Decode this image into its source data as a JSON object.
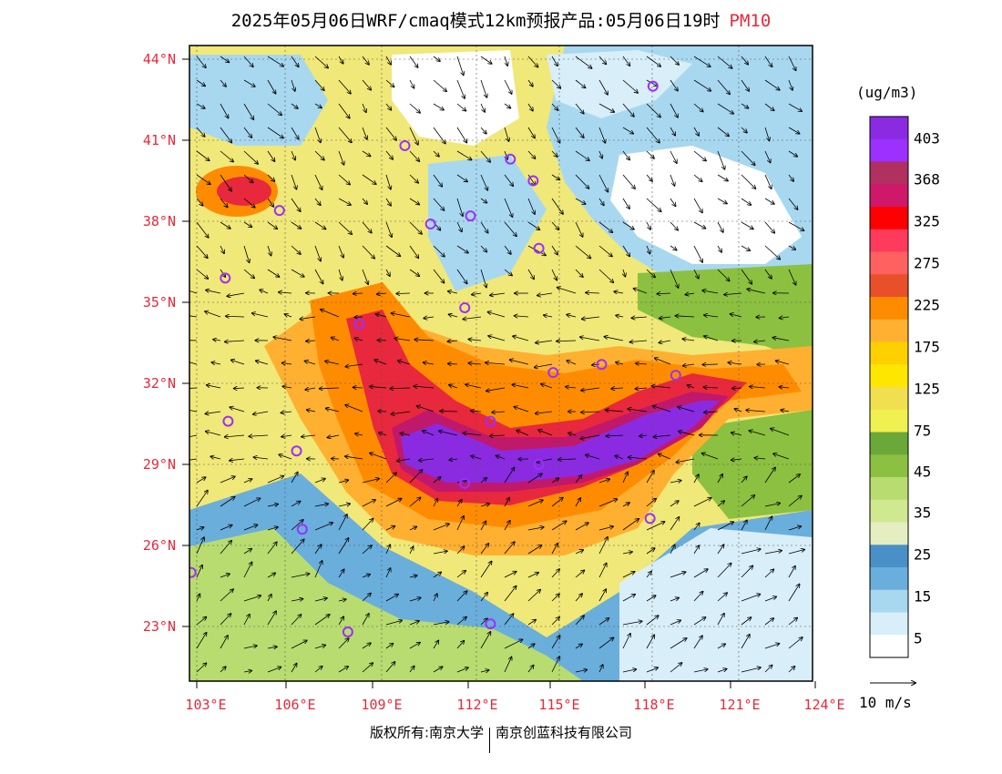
{
  "title": "2025年05月06日WRF/cmaq模式12km预报产品:05月06日19时",
  "pollutant": "PM10",
  "lat_labels": [
    "44°N",
    "41°N",
    "38°N",
    "35°N",
    "32°N",
    "29°N",
    "26°N",
    "23°N"
  ],
  "lon_labels": [
    "103°E",
    "106°E",
    "109°E",
    "112°E",
    "115°E",
    "118°E",
    "121°E",
    "124°E"
  ],
  "colorbar": {
    "unit": "(ug/m3)",
    "labels": [
      "403",
      "368",
      "325",
      "275",
      "225",
      "175",
      "125",
      "75",
      "45",
      "35",
      "25",
      "15",
      "5"
    ],
    "colors": [
      "#8a2be2",
      "#9b30ff",
      "#b03060",
      "#d0186b",
      "#ff0000",
      "#ff3b5c",
      "#ff6060",
      "#e8502a",
      "#ff8c00",
      "#ffb030",
      "#ffd000",
      "#ffe600",
      "#f0e050",
      "#f0f050",
      "#6aa83a",
      "#8cc040",
      "#b8dc70",
      "#d0e890",
      "#e4eec0",
      "#4a90c8",
      "#6aaedc",
      "#a8d8f0",
      "#d8eef8",
      "#ffffff"
    ]
  },
  "wind_reference": "10 m/s",
  "stations": [
    {
      "lon": 119.0,
      "lat": 43.0
    },
    {
      "lon": 110.3,
      "lat": 40.8
    },
    {
      "lon": 114.0,
      "lat": 40.3
    },
    {
      "lon": 114.8,
      "lat": 39.5
    },
    {
      "lon": 105.9,
      "lat": 38.4
    },
    {
      "lon": 111.2,
      "lat": 37.9
    },
    {
      "lon": 112.6,
      "lat": 38.2
    },
    {
      "lon": 115.0,
      "lat": 37.0
    },
    {
      "lon": 104.0,
      "lat": 35.9
    },
    {
      "lon": 112.4,
      "lat": 34.8
    },
    {
      "lon": 108.7,
      "lat": 34.2
    },
    {
      "lon": 115.5,
      "lat": 32.4
    },
    {
      "lon": 117.2,
      "lat": 32.7
    },
    {
      "lon": 119.8,
      "lat": 32.3
    },
    {
      "lon": 104.1,
      "lat": 30.6
    },
    {
      "lon": 113.3,
      "lat": 30.6
    },
    {
      "lon": 106.5,
      "lat": 29.5
    },
    {
      "lon": 115.0,
      "lat": 29.0
    },
    {
      "lon": 112.4,
      "lat": 28.3
    },
    {
      "lon": 106.7,
      "lat": 26.6
    },
    {
      "lon": 118.9,
      "lat": 27.0
    },
    {
      "lon": 102.8,
      "lat": 25.0
    },
    {
      "lon": 108.3,
      "lat": 22.8
    },
    {
      "lon": 113.3,
      "lat": 23.1
    }
  ],
  "footer": {
    "left": "版权所有:南京大学",
    "right": "南京创蓝科技有限公司"
  }
}
